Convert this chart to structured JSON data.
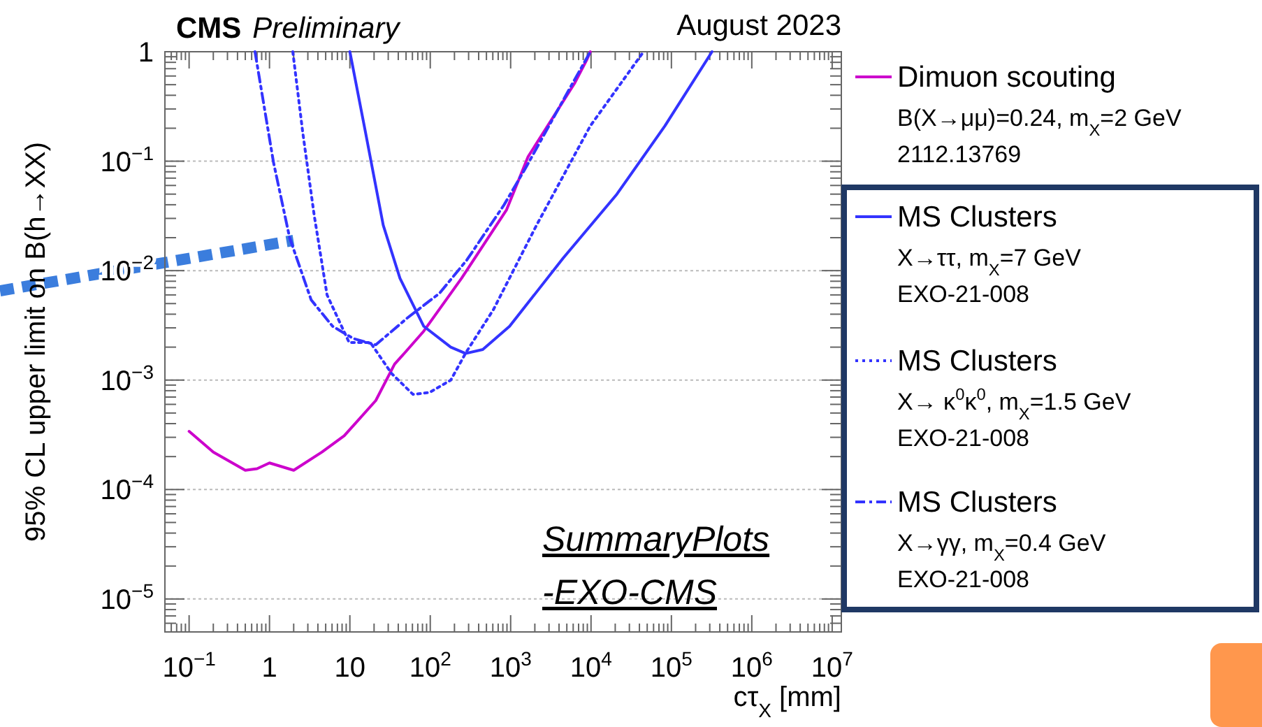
{
  "chart_data": {
    "type": "line",
    "title": "CMS",
    "subtitle": "Preliminary",
    "annotations": [
      "August 2023",
      "SummaryPlots -EXO-CMS"
    ],
    "xlabel": "cτ$_{X}$ [mm]",
    "ylabel": "95% CL upper limit on  B(h→XX)",
    "log": "xy",
    "grid": "y",
    "legend": "right",
    "xlim": [
      0.05,
      13000000
    ],
    "ylim": [
      5e-06,
      1
    ],
    "xticks": [
      {
        "value": 0.1,
        "label": "10$^{−1}$"
      },
      1,
      10,
      {
        "value": 100,
        "label": "10$^{2}$"
      },
      {
        "value": 1000,
        "label": "10$^{3}$"
      },
      {
        "value": 10000,
        "label": "10$^{4}$"
      },
      {
        "value": 100000,
        "label": "10$^{5}$"
      },
      {
        "value": 1000000,
        "label": "10$^{6}$"
      },
      {
        "value": 10000000,
        "label": "10$^{7}$"
      }
    ],
    "yticks": [
      {
        "value": 1e-05,
        "label": "10$^{−5}$"
      },
      {
        "value": 0.0001,
        "label": "10$^{−4}$"
      },
      {
        "value": 0.001,
        "label": "10$^{−3}$"
      },
      {
        "value": 0.01,
        "label": "10$^{−2}$"
      },
      {
        "value": 0.1,
        "label": "10$^{−1}$"
      },
      1
    ],
    "series": [
      {
        "name": "Dimuon scouting\nB(X→μμ)=0.24, m$_{X}$=2 GeV\n2112.13769",
        "color": "#cc00cc",
        "line_style": "solid",
        "x": [
          0.1,
          0.2,
          0.5,
          0.7,
          1,
          2,
          4.5,
          8.5,
          21,
          36,
          49,
          83,
          245,
          890,
          1650,
          6200,
          8900,
          9800
        ],
        "values": [
          0.00034,
          0.00022,
          0.00015,
          0.000155,
          0.000175,
          0.00015,
          0.00022,
          0.00031,
          0.00065,
          0.0014,
          0.0018,
          0.0028,
          0.0085,
          0.036,
          0.11,
          0.51,
          0.85,
          1
        ]
      },
      {
        "name": "MS Clusters\nX→ττ, m$_{X}$=7 GeV\nEXO-21-008",
        "color": "#3333ff",
        "line_style": "solid",
        "x": [
          10,
          15.5,
          26,
          42,
          83,
          180,
          275,
          450,
          970,
          4500,
          21000,
          83000,
          320000
        ],
        "values": [
          1,
          0.19,
          0.026,
          0.0085,
          0.0031,
          0.002,
          0.00175,
          0.0019,
          0.0031,
          0.013,
          0.05,
          0.21,
          1
        ]
      },
      {
        "name": "MS Clusters\nX→ κ$^{0}$κ$^{0}$, m$_{X}$=1.5 GeV\nEXO-21-008",
        "color": "#3333ff",
        "line_style": "dotted",
        "x": [
          1.95,
          2.6,
          3.6,
          5.2,
          9.8,
          18,
          33,
          61,
          98,
          180,
          280,
          610,
          2100,
          9800,
          45000
        ],
        "values": [
          1,
          0.18,
          0.032,
          0.006,
          0.0022,
          0.0022,
          0.00115,
          0.00074,
          0.00077,
          0.001,
          0.0018,
          0.0044,
          0.026,
          0.21,
          1
        ]
      },
      {
        "name": "MS Clusters\nX→γγ, m$_{X}$=0.4 GeV\nEXO-21-008",
        "color": "#3333ff",
        "line_style": "dashed",
        "x": [
          0.66,
          1.12,
          1.78,
          3.3,
          6.1,
          11,
          21,
          52,
          130,
          285,
          830,
          1540,
          6200,
          9800
        ],
        "values": [
          1,
          0.098,
          0.02,
          0.0054,
          0.0031,
          0.0024,
          0.0021,
          0.0037,
          0.0062,
          0.0125,
          0.04,
          0.087,
          0.55,
          1
        ]
      }
    ]
  }
}
